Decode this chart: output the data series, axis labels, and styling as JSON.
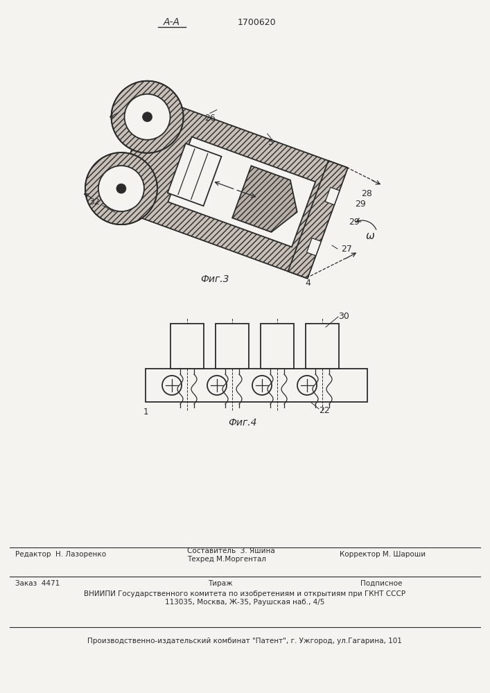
{
  "patent_number": "1700620",
  "fig3_label": "Фиг.3",
  "fig4_label": "Фиг.4",
  "section_label": "А-А",
  "bg_color": "#f5f3ef",
  "line_color": "#2a2a2a",
  "tilt_deg": -20
}
